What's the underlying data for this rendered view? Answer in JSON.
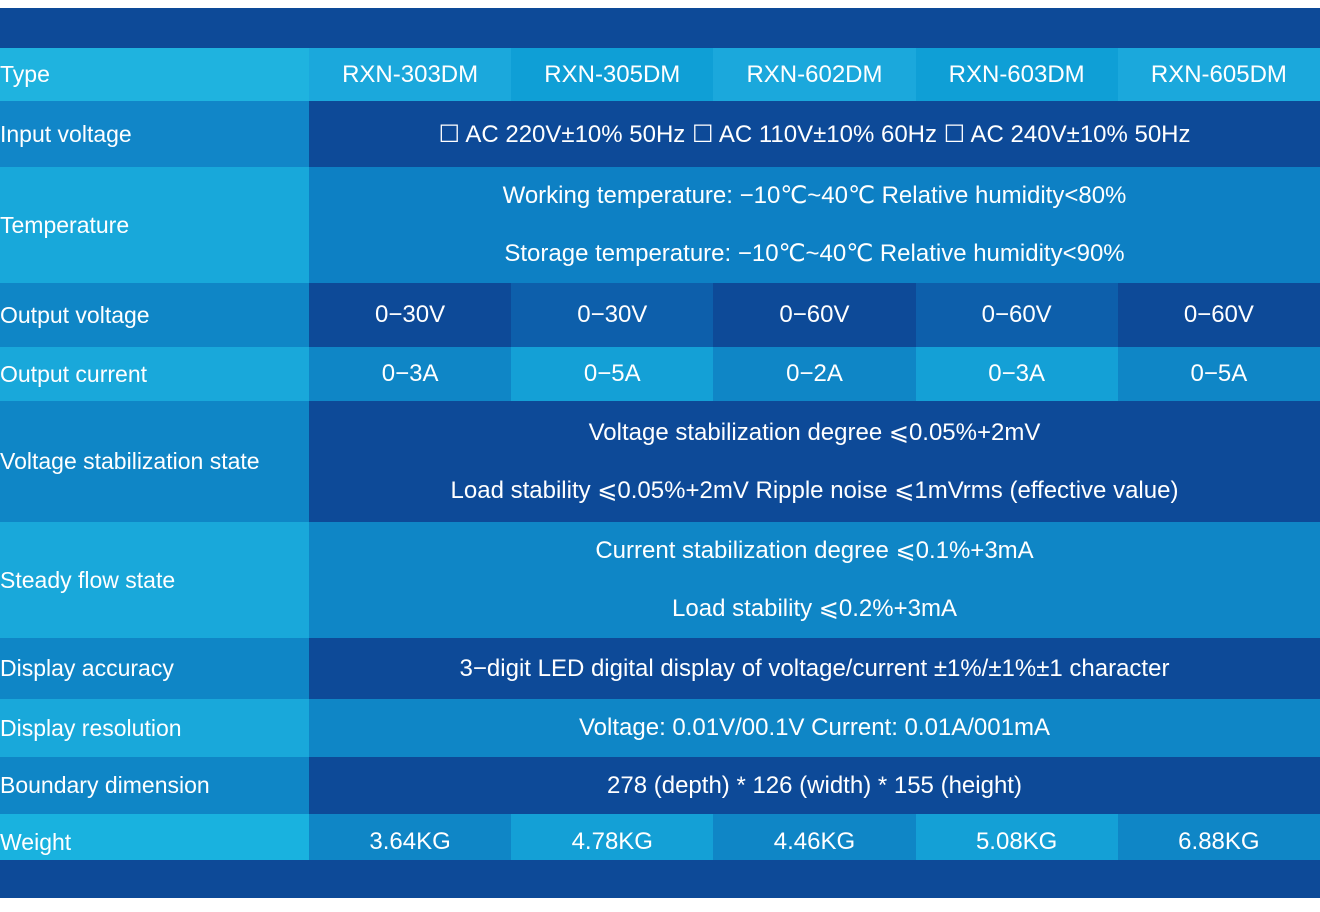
{
  "columns": [
    "RXN-303DM",
    "RXN-305DM",
    "RXN-602DM",
    "RXN-603DM",
    "RXN-605DM"
  ],
  "rows": {
    "type": {
      "label": "Type"
    },
    "input_voltage": {
      "label": "Input voltage",
      "value": "☐ AC 220V±10% 50Hz ☐ AC 110V±10% 60Hz ☐ AC 240V±10% 50Hz"
    },
    "temperature": {
      "label": "Temperature",
      "line1": "Working temperature: −10℃~40℃ Relative humidity<80%",
      "line2": "Storage temperature: −10℃~40℃ Relative humidity<90%"
    },
    "output_voltage": {
      "label": "Output voltage",
      "values": [
        "0−30V",
        "0−30V",
        "0−60V",
        "0−60V",
        "0−60V"
      ]
    },
    "output_current": {
      "label": "Output current",
      "values": [
        "0−3A",
        "0−5A",
        "0−2A",
        "0−3A",
        "0−5A"
      ]
    },
    "voltage_stabilization": {
      "label": "Voltage stabilization state",
      "line1": "Voltage stabilization degree ⩽0.05%+2mV",
      "line2": "Load stability ⩽0.05%+2mV Ripple noise ⩽1mVrms (effective value)"
    },
    "steady_flow": {
      "label": "Steady flow state",
      "line1": "Current stabilization degree ⩽0.1%+3mA",
      "line2": "Load stability ⩽0.2%+3mA"
    },
    "display_accuracy": {
      "label": "Display accuracy",
      "value": "3−digit LED digital display of voltage/current ±1%/±1%±1 character"
    },
    "display_resolution": {
      "label": "Display resolution",
      "value": "Voltage: 0.01V/00.1V Current: 0.01A/001mA"
    },
    "boundary_dimension": {
      "label": "Boundary dimension",
      "value": "278 (depth) * 126 (width) * 155 (height)"
    },
    "weight": {
      "label": "Weight",
      "values": [
        "3.64KG",
        "4.78KG",
        "4.46KG",
        "5.08KG",
        "6.88KG"
      ]
    }
  }
}
